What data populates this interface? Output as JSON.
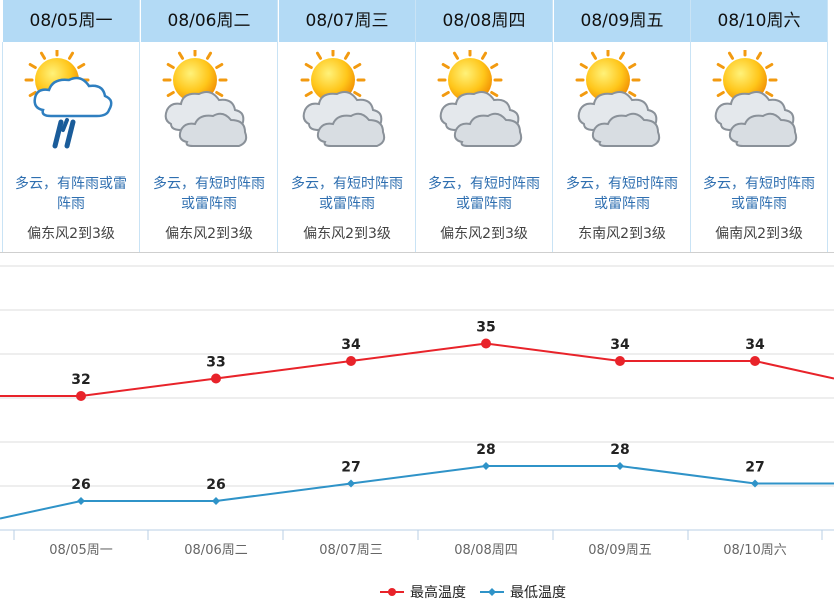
{
  "forecast": {
    "days": [
      {
        "date": "08/05周一",
        "icon": "sun-cloud-thunder-rain-icon",
        "desc_line1": "多云，有阵雨或雷",
        "desc_line2": "阵雨",
        "wind": "偏东风2到3级"
      },
      {
        "date": "08/06周二",
        "icon": "sun-cloud-icon",
        "desc_line1": "多云，有短时阵雨",
        "desc_line2": "或雷阵雨",
        "wind": "偏东风2到3级"
      },
      {
        "date": "08/07周三",
        "icon": "sun-cloud-icon",
        "desc_line1": "多云，有短时阵雨",
        "desc_line2": "或雷阵雨",
        "wind": "偏东风2到3级"
      },
      {
        "date": "08/08周四",
        "icon": "sun-cloud-icon",
        "desc_line1": "多云，有短时阵雨",
        "desc_line2": "或雷阵雨",
        "wind": "偏东风2到3级"
      },
      {
        "date": "08/09周五",
        "icon": "sun-cloud-icon",
        "desc_line1": "多云，有短时阵雨",
        "desc_line2": "或雷阵雨",
        "wind": "东南风2到3级"
      },
      {
        "date": "08/10周六",
        "icon": "sun-cloud-icon",
        "desc_line1": "多云，有短时阵雨",
        "desc_line2": "或雷阵雨",
        "wind": "偏南风2到3级"
      }
    ]
  },
  "chart_data": {
    "type": "line",
    "title": "",
    "xlabel": "",
    "ylabel": "",
    "categories": [
      "08/05周一",
      "08/06周二",
      "08/07周三",
      "08/08周四",
      "08/09周五",
      "08/10周六"
    ],
    "series": [
      {
        "name": "最高温度",
        "color": "#e8232a",
        "values": [
          32,
          33,
          34,
          35,
          34,
          34
        ]
      },
      {
        "name": "最低温度",
        "color": "#2f93c8",
        "values": [
          26,
          26,
          27,
          28,
          28,
          27
        ]
      }
    ],
    "ylim": [
      22,
      37
    ],
    "grid": true,
    "legend": "bottom-center"
  }
}
